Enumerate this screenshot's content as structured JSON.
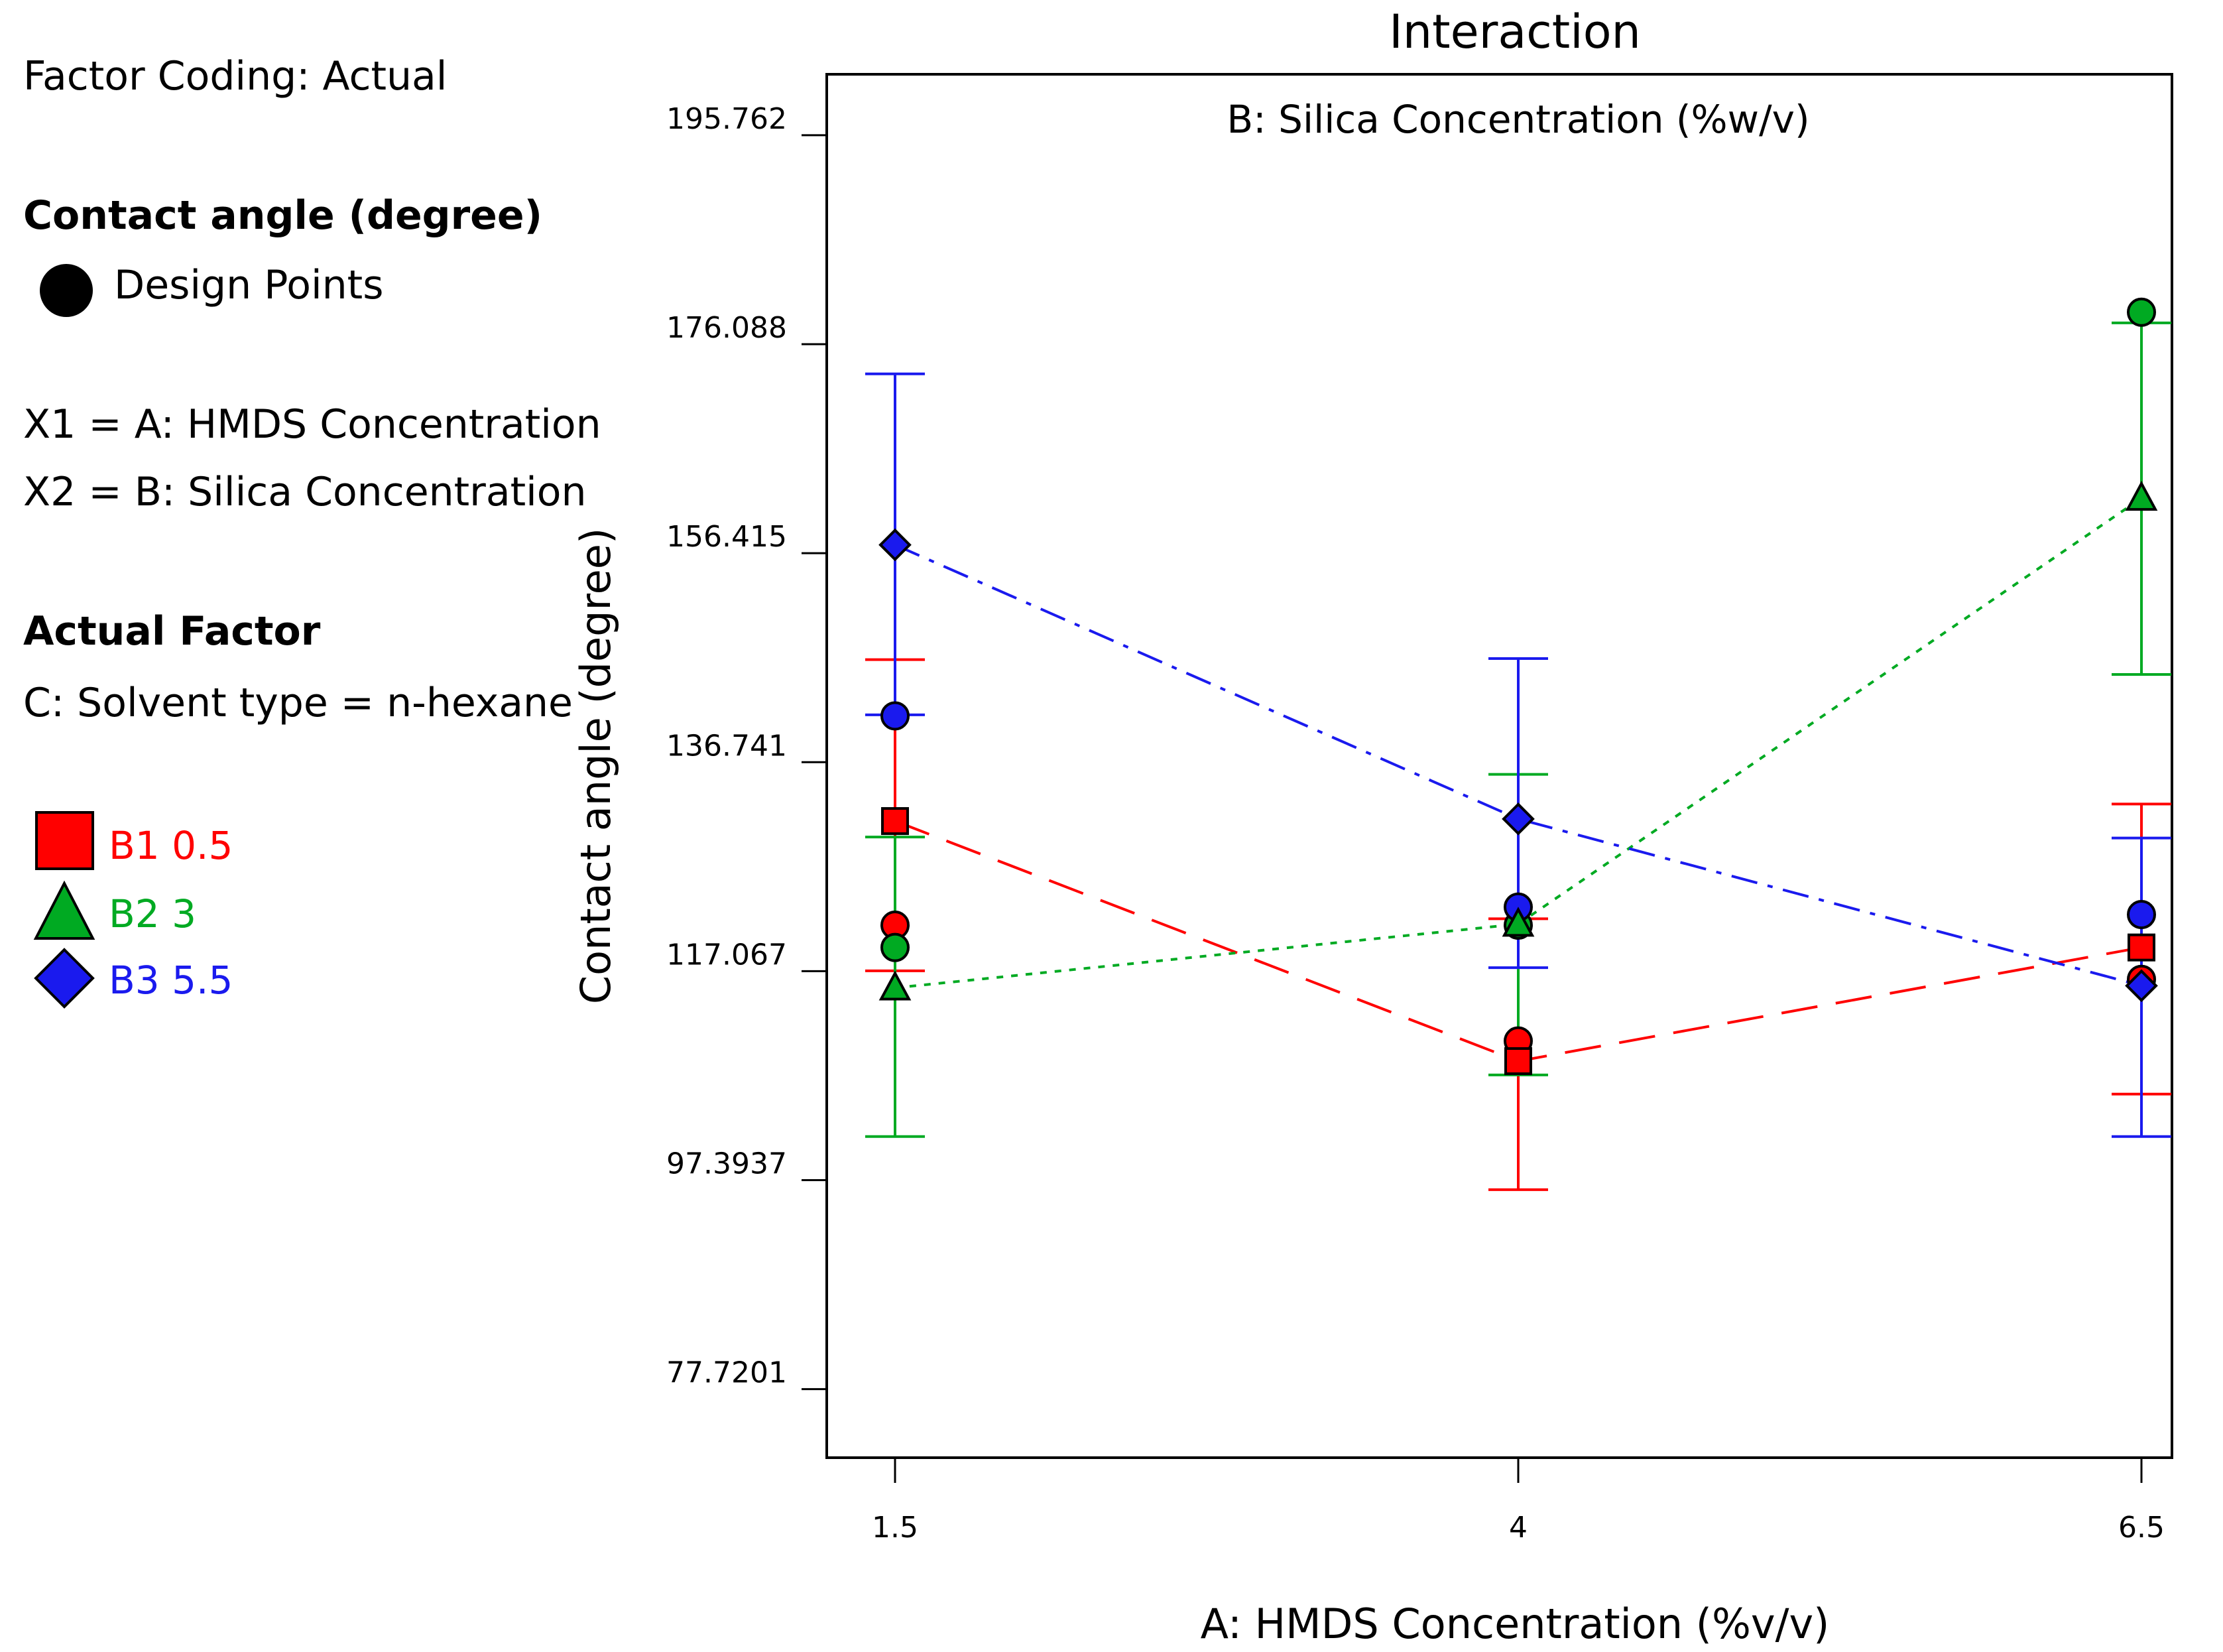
{
  "legend_panel": {
    "factor_coding": "Factor Coding: Actual",
    "response_title": "Contact angle (degree)",
    "design_points_label": "Design Points",
    "x1_def": "X1 = A: HMDS Concentration",
    "x2_def": "X2 = B: Silica Concentration",
    "actual_factor_title": "Actual Factor",
    "actual_factor_value": "C: Solvent type = n-hexane"
  },
  "chart_data": {
    "type": "line",
    "title": "Interaction",
    "subtitle": "B: Silica Concentration (%w/v)",
    "xlabel": "A: HMDS Concentration (%v/v)",
    "ylabel": "Contact angle (degree)",
    "x": [
      1.5,
      4,
      6.5
    ],
    "x_tick_labels": [
      "1.5",
      "4",
      "6.5"
    ],
    "ylim": [
      71.27,
      201.5
    ],
    "y_ticks": [
      77.7201,
      97.3937,
      117.067,
      136.741,
      156.415,
      176.088,
      195.762
    ],
    "y_tick_labels": [
      "77.7201",
      "97.3937",
      "117.067",
      "136.741",
      "156.415",
      "176.088",
      "195.762"
    ],
    "grid": false,
    "series": [
      {
        "name": "B1 0.5",
        "level_label": "B1",
        "level_value": "0.5",
        "color": "#ff0000",
        "marker": "square",
        "line_style": "long-dash",
        "values": [
          131.2,
          108.6,
          119.3
        ],
        "ci_lower": [
          117.1,
          96.5,
          105.5
        ],
        "ci_upper": [
          146.4,
          122.0,
          132.8
        ],
        "design_points": [
          [
            1.5,
            121.4
          ],
          [
            4,
            110.5
          ],
          [
            6.5,
            116.3
          ]
        ]
      },
      {
        "name": "B2 3",
        "level_label": "B2",
        "level_value": "3",
        "color": "#00aa22",
        "marker": "triangle",
        "line_style": "dotted",
        "values": [
          115.5,
          121.5,
          161.6
        ],
        "ci_lower": [
          101.5,
          107.3,
          145.0
        ],
        "ci_upper": [
          129.7,
          135.6,
          178.1
        ],
        "design_points": [
          [
            1.5,
            119.3
          ],
          [
            4,
            121.4
          ],
          [
            6.5,
            179.1
          ]
        ]
      },
      {
        "name": "B3 5.5",
        "level_label": "B3",
        "level_value": "5.5",
        "color": "#1a1aee",
        "marker": "diamond",
        "line_style": "dash-dot",
        "values": [
          157.2,
          131.4,
          115.7
        ],
        "ci_lower": [
          141.2,
          117.4,
          101.5
        ],
        "ci_upper": [
          173.3,
          146.5,
          129.6
        ],
        "design_points": [
          [
            1.5,
            141.1
          ],
          [
            4,
            123.1
          ],
          [
            6.5,
            122.4
          ]
        ]
      }
    ]
  }
}
